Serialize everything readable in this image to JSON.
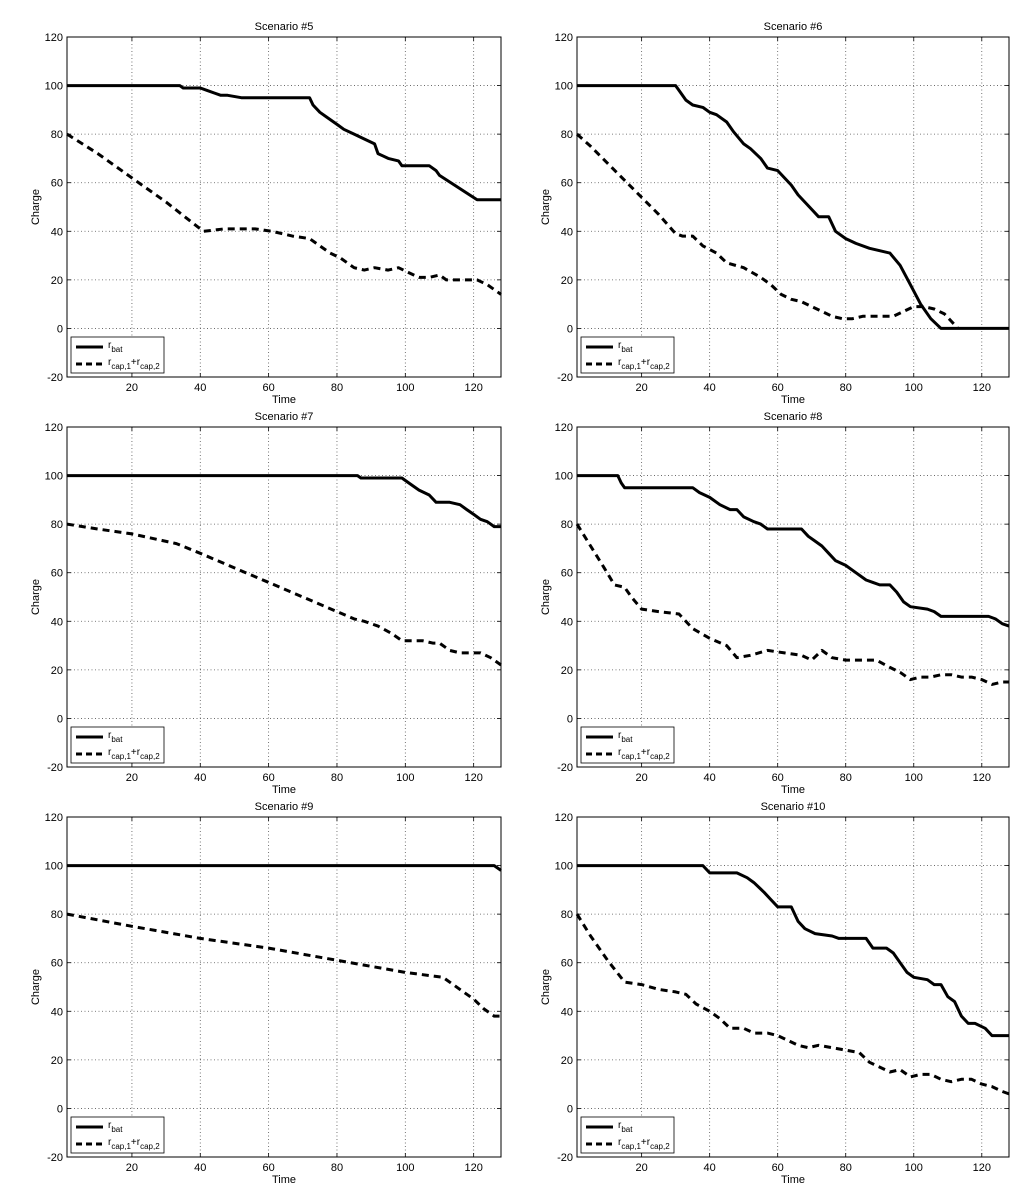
{
  "chart_data": [
    {
      "type": "line",
      "title": "Scenario #5",
      "xlabel": "Time",
      "ylabel": "Charge",
      "xlim": [
        1,
        128
      ],
      "ylim": [
        -20,
        120
      ],
      "xticks": [
        20,
        40,
        60,
        80,
        100,
        120
      ],
      "yticks": [
        -20,
        0,
        20,
        40,
        60,
        80,
        100,
        120
      ],
      "grid": true,
      "legend_position": "bottom-left",
      "series": [
        {
          "name": "r_bat",
          "style": "solid",
          "x": [
            1,
            34,
            35,
            40,
            42,
            44,
            46,
            48,
            52,
            53,
            72,
            73,
            75,
            77,
            80,
            82,
            85,
            88,
            91,
            92,
            95,
            98,
            99,
            107,
            109,
            110,
            121,
            122,
            128
          ],
          "y": [
            100,
            100,
            99,
            99,
            98,
            97,
            96,
            96,
            95,
            95,
            95,
            92,
            89,
            87,
            84,
            82,
            80,
            78,
            76,
            72,
            70,
            69,
            67,
            67,
            65,
            63,
            53,
            53,
            53
          ]
        },
        {
          "name": "r_cap,1+r_cap,2",
          "style": "dashed",
          "x": [
            1,
            10,
            20,
            30,
            40,
            41,
            47,
            52,
            56,
            61,
            67,
            72,
            75,
            78,
            81,
            85,
            88,
            91,
            95,
            98,
            101,
            104,
            107,
            110,
            112,
            115,
            118,
            121,
            124,
            128
          ],
          "y": [
            80,
            72,
            62,
            52,
            41,
            40,
            41,
            41,
            41,
            40,
            38,
            37,
            34,
            31,
            29,
            25,
            24,
            25,
            24,
            25,
            23,
            21,
            21,
            22,
            20,
            20,
            20,
            20,
            18,
            14
          ]
        }
      ],
      "legend": [
        {
          "main": "r",
          "sub": "bat"
        },
        {
          "main": "r",
          "sub": "cap,1",
          "main2": "+r",
          "sub2": "cap,2"
        }
      ]
    },
    {
      "type": "line",
      "title": "Scenario #6",
      "xlabel": "Time",
      "ylabel": "Charge",
      "xlim": [
        1,
        128
      ],
      "ylim": [
        -20,
        120
      ],
      "xticks": [
        20,
        40,
        60,
        80,
        100,
        120
      ],
      "yticks": [
        -20,
        0,
        20,
        40,
        60,
        80,
        100,
        120
      ],
      "grid": true,
      "legend_position": "bottom-left",
      "series": [
        {
          "name": "r_bat",
          "style": "solid",
          "x": [
            1,
            30,
            31,
            33,
            35,
            38,
            40,
            42,
            45,
            47,
            50,
            52,
            55,
            57,
            60,
            62,
            64,
            66,
            68,
            70,
            72,
            75,
            77,
            80,
            83,
            87,
            90,
            93,
            96,
            99,
            102,
            105,
            108,
            112,
            128
          ],
          "y": [
            100,
            100,
            98,
            94,
            92,
            91,
            89,
            88,
            85,
            81,
            76,
            74,
            70,
            66,
            65,
            62,
            59,
            55,
            52,
            49,
            46,
            46,
            40,
            37,
            35,
            33,
            32,
            31,
            26,
            18,
            10,
            4,
            0,
            0,
            0
          ]
        },
        {
          "name": "r_cap,1+r_cap,2",
          "style": "dashed",
          "x": [
            1,
            5,
            10,
            15,
            20,
            25,
            30,
            32,
            35,
            38,
            42,
            45,
            50,
            55,
            58,
            61,
            64,
            67,
            70,
            73,
            76,
            79,
            82,
            85,
            88,
            91,
            94,
            97,
            100,
            103,
            106,
            109,
            111,
            113
          ],
          "y": [
            80,
            75,
            68,
            61,
            54,
            47,
            39,
            38,
            38,
            34,
            31,
            27,
            25,
            21,
            18,
            14,
            12,
            11,
            9,
            7,
            5,
            4,
            4,
            5,
            5,
            5,
            5,
            7,
            9,
            9,
            8,
            6,
            3,
            0
          ]
        }
      ],
      "legend": [
        {
          "main": "r",
          "sub": "bat"
        },
        {
          "main": "r",
          "sub": "cap,1",
          "main2": "+r",
          "sub2": "cap,2"
        }
      ]
    },
    {
      "type": "line",
      "title": "Scenario #7",
      "xlabel": "Time",
      "ylabel": "Charge",
      "xlim": [
        1,
        128
      ],
      "ylim": [
        -20,
        120
      ],
      "xticks": [
        20,
        40,
        60,
        80,
        100,
        120
      ],
      "yticks": [
        -20,
        0,
        20,
        40,
        60,
        80,
        100,
        120
      ],
      "grid": true,
      "legend_position": "bottom-left",
      "series": [
        {
          "name": "r_bat",
          "style": "solid",
          "x": [
            1,
            86,
            87,
            99,
            101,
            104,
            107,
            109,
            110,
            113,
            116,
            118,
            120,
            122,
            124,
            126,
            128
          ],
          "y": [
            100,
            100,
            99,
            99,
            97,
            94,
            92,
            89,
            89,
            89,
            88,
            86,
            84,
            82,
            81,
            79,
            79
          ]
        },
        {
          "name": "r_cap,1+r_cap,2",
          "style": "dashed",
          "x": [
            1,
            10,
            20,
            33,
            40,
            50,
            60,
            70,
            80,
            85,
            88,
            92,
            96,
            99,
            102,
            105,
            108,
            110,
            113,
            116,
            119,
            122,
            125,
            128
          ],
          "y": [
            80,
            78,
            76,
            72,
            68,
            62,
            56,
            50,
            44,
            41,
            40,
            38,
            35,
            32,
            32,
            32,
            31,
            31,
            28,
            27,
            27,
            27,
            25,
            22
          ]
        }
      ],
      "legend": [
        {
          "main": "r",
          "sub": "bat"
        },
        {
          "main": "r",
          "sub": "cap,1",
          "main2": "+r",
          "sub2": "cap,2"
        }
      ]
    },
    {
      "type": "line",
      "title": "Scenario #8",
      "xlabel": "Time",
      "ylabel": "Charge",
      "xlim": [
        1,
        128
      ],
      "ylim": [
        -20,
        120
      ],
      "xticks": [
        20,
        40,
        60,
        80,
        100,
        120
      ],
      "yticks": [
        -20,
        0,
        20,
        40,
        60,
        80,
        100,
        120
      ],
      "grid": true,
      "legend_position": "bottom-left",
      "series": [
        {
          "name": "r_bat",
          "style": "solid",
          "x": [
            1,
            13,
            14,
            15,
            35,
            37,
            40,
            43,
            46,
            48,
            50,
            53,
            55,
            57,
            67,
            69,
            71,
            73,
            75,
            77,
            80,
            83,
            86,
            88,
            90,
            93,
            95,
            97,
            99,
            104,
            106,
            108,
            122,
            124,
            126,
            128
          ],
          "y": [
            100,
            100,
            97,
            95,
            95,
            93,
            91,
            88,
            86,
            86,
            83,
            81,
            80,
            78,
            78,
            75,
            73,
            71,
            68,
            65,
            63,
            60,
            57,
            56,
            55,
            55,
            52,
            48,
            46,
            45,
            44,
            42,
            42,
            41,
            39,
            38
          ]
        },
        {
          "name": "r_cap,1+r_cap,2",
          "style": "dashed",
          "x": [
            1,
            5,
            9,
            12,
            15,
            17,
            20,
            25,
            31,
            35,
            40,
            45,
            48,
            52,
            57,
            62,
            67,
            70,
            73,
            76,
            80,
            85,
            89,
            93,
            96,
            99,
            102,
            105,
            108,
            111,
            114,
            117,
            120,
            123,
            126,
            128
          ],
          "y": [
            80,
            71,
            62,
            55,
            54,
            50,
            45,
            44,
            43,
            37,
            33,
            30,
            25,
            26,
            28,
            27,
            26,
            24,
            28,
            25,
            24,
            24,
            24,
            21,
            19,
            16,
            17,
            17,
            18,
            18,
            17,
            17,
            16,
            14,
            15,
            15
          ]
        }
      ],
      "legend": [
        {
          "main": "r",
          "sub": "bat"
        },
        {
          "main": "r",
          "sub": "cap,1",
          "main2": "+r",
          "sub2": "cap,2"
        }
      ]
    },
    {
      "type": "line",
      "title": "Scenario #9",
      "xlabel": "Time",
      "ylabel": "Charge",
      "xlim": [
        1,
        128
      ],
      "ylim": [
        -20,
        120
      ],
      "xticks": [
        20,
        40,
        60,
        80,
        100,
        120
      ],
      "yticks": [
        -20,
        0,
        20,
        40,
        60,
        80,
        100,
        120
      ],
      "grid": true,
      "legend_position": "bottom-left",
      "series": [
        {
          "name": "r_bat",
          "style": "solid",
          "x": [
            1,
            126,
            128
          ],
          "y": [
            100,
            100,
            98
          ]
        },
        {
          "name": "r_cap,1+r_cap,2",
          "style": "dashed",
          "x": [
            1,
            20,
            40,
            60,
            80,
            100,
            111,
            114,
            117,
            120,
            123,
            126,
            128
          ],
          "y": [
            80,
            75,
            70,
            66,
            61,
            56,
            54,
            51,
            48,
            45,
            41,
            38,
            38
          ]
        }
      ],
      "legend": [
        {
          "main": "r",
          "sub": "bat"
        },
        {
          "main": "r",
          "sub": "cap,1",
          "main2": "+r",
          "sub2": "cap,2"
        }
      ]
    },
    {
      "type": "line",
      "title": "Scenario #10",
      "xlabel": "Time",
      "ylabel": "Charge",
      "xlim": [
        1,
        128
      ],
      "ylim": [
        -20,
        120
      ],
      "xticks": [
        20,
        40,
        60,
        80,
        100,
        120
      ],
      "yticks": [
        -20,
        0,
        20,
        40,
        60,
        80,
        100,
        120
      ],
      "grid": true,
      "legend_position": "bottom-left",
      "series": [
        {
          "name": "r_bat",
          "style": "solid",
          "x": [
            1,
            38,
            40,
            48,
            51,
            53,
            56,
            58,
            60,
            64,
            66,
            68,
            71,
            76,
            78,
            86,
            88,
            92,
            94,
            96,
            98,
            100,
            104,
            106,
            108,
            110,
            112,
            114,
            116,
            118,
            121,
            123,
            128
          ],
          "y": [
            100,
            100,
            97,
            97,
            95,
            93,
            89,
            86,
            83,
            83,
            77,
            74,
            72,
            71,
            70,
            70,
            66,
            66,
            64,
            60,
            56,
            54,
            53,
            51,
            51,
            46,
            44,
            38,
            35,
            35,
            33,
            30,
            30
          ]
        },
        {
          "name": "r_cap,1+r_cap,2",
          "style": "dashed",
          "x": [
            1,
            5,
            10,
            15,
            20,
            25,
            30,
            33,
            36,
            40,
            43,
            46,
            50,
            53,
            57,
            60,
            63,
            66,
            69,
            72,
            76,
            80,
            84,
            87,
            90,
            93,
            96,
            99,
            102,
            105,
            108,
            111,
            114,
            117,
            120,
            123,
            126,
            128
          ],
          "y": [
            80,
            71,
            61,
            52,
            51,
            49,
            48,
            47,
            43,
            40,
            37,
            33,
            33,
            31,
            31,
            30,
            28,
            26,
            25,
            26,
            25,
            24,
            23,
            19,
            17,
            15,
            16,
            13,
            14,
            14,
            12,
            11,
            12,
            12,
            10,
            9,
            7,
            6
          ]
        }
      ],
      "legend": [
        {
          "main": "r",
          "sub": "bat"
        },
        {
          "main": "r",
          "sub": "cap,1",
          "main2": "+r",
          "sub2": "cap,2"
        }
      ]
    }
  ]
}
